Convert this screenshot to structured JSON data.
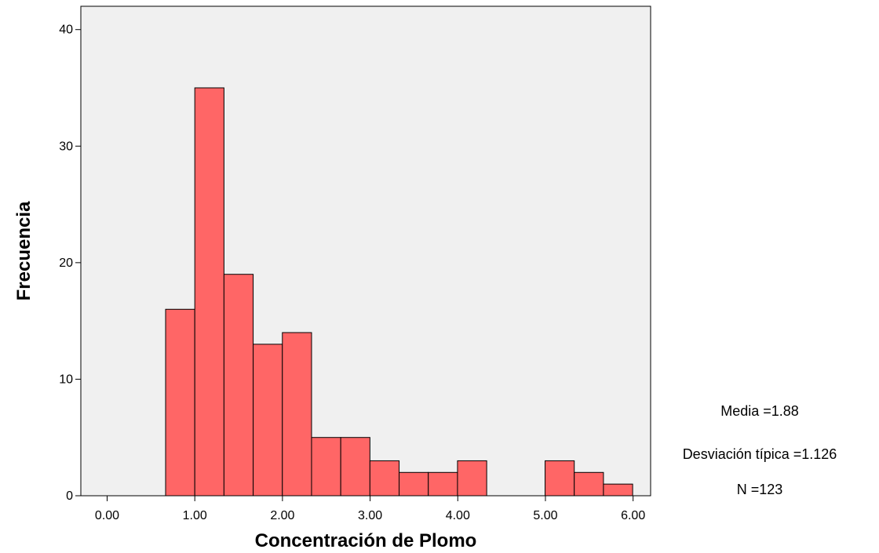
{
  "chart_data": {
    "type": "histogram",
    "title": "",
    "xlabel": "Concentración de Plomo",
    "ylabel": "Frecuencia",
    "xlim": [
      -0.3,
      6.2
    ],
    "ylim": [
      0,
      42
    ],
    "x_ticks": [
      0,
      1,
      2,
      3,
      4,
      5,
      6
    ],
    "x_tick_labels": [
      "0.00",
      "1.00",
      "2.00",
      "3.00",
      "4.00",
      "5.00",
      "6.00"
    ],
    "y_ticks": [
      0,
      10,
      20,
      30,
      40
    ],
    "y_tick_labels": [
      "0",
      "10",
      "20",
      "30",
      "40"
    ],
    "bin_start": 0.667,
    "bin_width": 0.333,
    "frequencies": [
      16,
      35,
      19,
      13,
      14,
      5,
      5,
      3,
      2,
      2,
      3,
      0,
      0,
      3,
      2,
      1
    ],
    "bar_color": "#ff6666",
    "plot_background": "#f0f0f0",
    "grid": false,
    "stats": {
      "mean_label": "Media =1.88",
      "sd_label": "Desviación típica =1.126",
      "n_label": "N =123"
    }
  }
}
